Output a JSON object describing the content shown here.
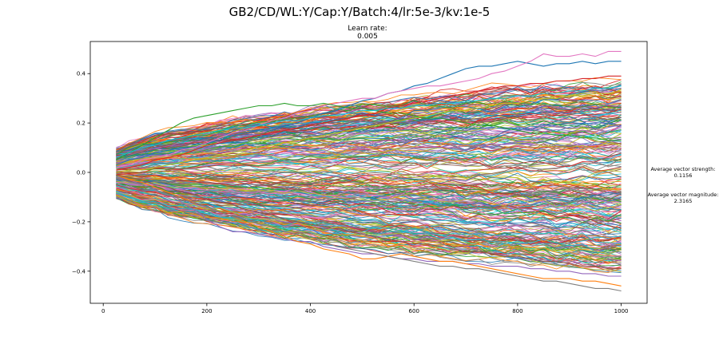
{
  "figure": {
    "suptitle": "GB2/CD/WL:Y/Cap:Y/Batch:4/lr:5e-3/kv:1e-5",
    "subtitle_label": "Learn rate:",
    "subtitle_value": "0.005"
  },
  "annotations": {
    "strength_label": "Average vector strength:",
    "strength_value": "0.1156",
    "magnitude_label": "Average vector magnitude:",
    "magnitude_value": "2.3165"
  },
  "chart_data": {
    "type": "line",
    "title": "Learn rate:\n0.005",
    "xlabel": "",
    "ylabel": "",
    "xlim": [
      -25,
      1050
    ],
    "ylim": [
      -0.53,
      0.53
    ],
    "xticks": [
      0,
      200,
      400,
      600,
      800,
      1000
    ],
    "xtick_labels": [
      "0",
      "200",
      "400",
      "600",
      "800",
      "1000"
    ],
    "yticks": [
      -0.4,
      -0.2,
      0.0,
      0.2,
      0.4
    ],
    "ytick_labels": [
      "−0.4",
      "−0.2",
      "0.0",
      "0.2",
      "0.4"
    ],
    "grid": false,
    "legend": false,
    "x": [
      25,
      50,
      75,
      100,
      125,
      150,
      175,
      200,
      225,
      250,
      275,
      300,
      325,
      350,
      375,
      400,
      425,
      450,
      475,
      500,
      525,
      550,
      575,
      600,
      625,
      650,
      675,
      700,
      725,
      750,
      775,
      800,
      825,
      850,
      875,
      900,
      925,
      950,
      975,
      1000
    ],
    "series": [
      {
        "color": "#1f77b4",
        "values": [
          0.03,
          0.05,
          0.06,
          0.08,
          0.09,
          0.1,
          0.1,
          0.12,
          0.13,
          0.15,
          0.16,
          0.17,
          0.18,
          0.19,
          0.2,
          0.22,
          0.24,
          0.25,
          0.27,
          0.29,
          0.3,
          0.32,
          0.33,
          0.35,
          0.36,
          0.38,
          0.4,
          0.42,
          0.43,
          0.43,
          0.44,
          0.45,
          0.44,
          0.43,
          0.44,
          0.44,
          0.45,
          0.44,
          0.45,
          0.45
        ]
      },
      {
        "color": "#e377c2",
        "values": [
          0.02,
          0.03,
          0.05,
          0.06,
          0.07,
          0.09,
          0.1,
          0.12,
          0.14,
          0.16,
          0.17,
          0.19,
          0.21,
          0.22,
          0.24,
          0.25,
          0.27,
          0.28,
          0.29,
          0.3,
          0.3,
          0.32,
          0.33,
          0.34,
          0.35,
          0.35,
          0.36,
          0.37,
          0.38,
          0.4,
          0.41,
          0.43,
          0.45,
          0.48,
          0.47,
          0.47,
          0.48,
          0.47,
          0.49,
          0.49
        ]
      },
      {
        "color": "#2ca02c",
        "values": [
          0.05,
          0.08,
          0.11,
          0.14,
          0.17,
          0.2,
          0.22,
          0.23,
          0.24,
          0.25,
          0.26,
          0.27,
          0.27,
          0.28,
          0.27,
          0.27,
          0.28,
          0.27,
          0.26,
          0.26,
          0.25,
          0.24,
          0.24,
          0.23,
          0.22,
          0.22,
          0.21,
          0.2,
          0.19,
          0.19,
          0.18,
          0.17,
          0.16,
          0.16,
          0.15,
          0.15,
          0.14,
          0.14,
          0.13,
          0.13
        ]
      },
      {
        "color": "#d62728",
        "values": [
          0.01,
          0.02,
          0.03,
          0.05,
          0.06,
          0.07,
          0.09,
          0.11,
          0.12,
          0.13,
          0.14,
          0.15,
          0.16,
          0.17,
          0.18,
          0.19,
          0.2,
          0.21,
          0.22,
          0.23,
          0.24,
          0.26,
          0.27,
          0.28,
          0.29,
          0.3,
          0.31,
          0.32,
          0.33,
          0.34,
          0.35,
          0.35,
          0.36,
          0.36,
          0.37,
          0.37,
          0.38,
          0.38,
          0.39,
          0.39
        ]
      },
      {
        "color": "#9467bd",
        "values": [
          -0.02,
          -0.03,
          -0.05,
          -0.07,
          -0.09,
          -0.12,
          -0.15,
          -0.19,
          -0.22,
          -0.24,
          -0.24,
          -0.25,
          -0.26,
          -0.27,
          -0.28,
          -0.28,
          -0.3,
          -0.31,
          -0.32,
          -0.33,
          -0.33,
          -0.34,
          -0.35,
          -0.35,
          -0.36,
          -0.36,
          -0.36,
          -0.37,
          -0.37,
          -0.38,
          -0.38,
          -0.38,
          -0.39,
          -0.39,
          -0.4,
          -0.4,
          -0.41,
          -0.41,
          -0.42,
          -0.42
        ]
      },
      {
        "color": "#ff7f0e",
        "values": [
          -0.01,
          -0.03,
          -0.04,
          -0.06,
          -0.08,
          -0.1,
          -0.12,
          -0.14,
          -0.16,
          -0.18,
          -0.2,
          -0.22,
          -0.24,
          -0.26,
          -0.28,
          -0.29,
          -0.31,
          -0.32,
          -0.33,
          -0.35,
          -0.35,
          -0.34,
          -0.33,
          -0.34,
          -0.35,
          -0.36,
          -0.36,
          -0.37,
          -0.38,
          -0.39,
          -0.4,
          -0.41,
          -0.42,
          -0.43,
          -0.43,
          -0.43,
          -0.44,
          -0.44,
          -0.45,
          -0.46
        ]
      },
      {
        "color": "#7f7f7f",
        "values": [
          -0.02,
          -0.04,
          -0.05,
          -0.07,
          -0.09,
          -0.11,
          -0.12,
          -0.14,
          -0.16,
          -0.18,
          -0.19,
          -0.21,
          -0.22,
          -0.24,
          -0.25,
          -0.27,
          -0.28,
          -0.3,
          -0.31,
          -0.32,
          -0.33,
          -0.34,
          -0.35,
          -0.36,
          -0.37,
          -0.38,
          -0.38,
          -0.39,
          -0.39,
          -0.4,
          -0.41,
          -0.42,
          -0.43,
          -0.44,
          -0.44,
          -0.45,
          -0.46,
          -0.47,
          -0.47,
          -0.48
        ]
      },
      {
        "color": "#8c564b",
        "values": [
          -0.01,
          -0.02,
          -0.03,
          -0.05,
          -0.06,
          -0.08,
          -0.09,
          -0.11,
          -0.12,
          -0.13,
          -0.15,
          -0.16,
          -0.17,
          -0.19,
          -0.2,
          -0.21,
          -0.22,
          -0.23,
          -0.24,
          -0.25,
          -0.26,
          -0.27,
          -0.28,
          -0.29,
          -0.29,
          -0.3,
          -0.31,
          -0.32,
          -0.32,
          -0.33,
          -0.34,
          -0.34,
          -0.35,
          -0.36,
          -0.36,
          -0.37,
          -0.38,
          -0.38,
          -0.39,
          -0.39
        ]
      },
      {
        "color": "#17becf",
        "values": [
          0.06,
          0.08,
          0.1,
          0.11,
          0.13,
          0.14,
          0.15,
          0.16,
          0.17,
          0.18,
          0.18,
          0.19,
          0.2,
          0.21,
          0.21,
          0.22,
          0.23,
          0.23,
          0.24,
          0.25,
          0.25,
          0.26,
          0.26,
          0.27,
          0.27,
          0.28,
          0.28,
          0.29,
          0.29,
          0.3,
          0.3,
          0.31,
          0.31,
          0.32,
          0.32,
          0.33,
          0.33,
          0.34,
          0.34,
          0.35
        ]
      },
      {
        "color": "#bcbd22",
        "values": [
          0.0,
          0.01,
          0.01,
          0.02,
          0.03,
          0.04,
          0.05,
          0.06,
          0.07,
          0.08,
          0.09,
          0.1,
          0.11,
          0.12,
          0.13,
          0.14,
          0.15,
          0.16,
          0.17,
          0.18,
          0.19,
          0.2,
          0.21,
          0.22,
          0.23,
          0.24,
          0.25,
          0.25,
          0.26,
          0.27,
          0.28,
          0.28,
          0.29,
          0.3,
          0.3,
          0.31,
          0.31,
          0.32,
          0.32,
          0.33
        ]
      }
    ],
    "envelope": {
      "description": "many overlapping runs",
      "upper": [
        0.1,
        0.12,
        0.14,
        0.16,
        0.17,
        0.18,
        0.19,
        0.2,
        0.21,
        0.22,
        0.23,
        0.24,
        0.25,
        0.26,
        0.26,
        0.27,
        0.28,
        0.28,
        0.29,
        0.3,
        0.3,
        0.31,
        0.31,
        0.32,
        0.32,
        0.33,
        0.33,
        0.33,
        0.34,
        0.34,
        0.35,
        0.35,
        0.35,
        0.36,
        0.36,
        0.36,
        0.37,
        0.37,
        0.37,
        0.38
      ],
      "lower": [
        -0.1,
        -0.12,
        -0.14,
        -0.15,
        -0.17,
        -0.18,
        -0.19,
        -0.2,
        -0.21,
        -0.22,
        -0.23,
        -0.24,
        -0.25,
        -0.26,
        -0.26,
        -0.27,
        -0.28,
        -0.28,
        -0.29,
        -0.3,
        -0.3,
        -0.31,
        -0.31,
        -0.32,
        -0.32,
        -0.33,
        -0.33,
        -0.34,
        -0.34,
        -0.35,
        -0.35,
        -0.35,
        -0.36,
        -0.36,
        -0.37,
        -0.37,
        -0.37,
        -0.38,
        -0.38,
        -0.38
      ]
    }
  }
}
